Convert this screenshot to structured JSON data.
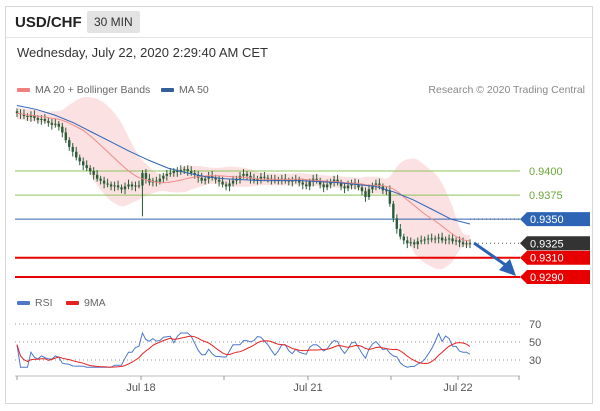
{
  "header": {
    "symbol": "USD/CHF",
    "timeframe": "30 MIN"
  },
  "date_line": "Wednesday, July 22, 2020 2:29:40 AM CET",
  "legend": [
    {
      "label": "MA 20 + Bollinger Bands",
      "color": "#f07f7f"
    },
    {
      "label": "MA 50",
      "color": "#34609a"
    }
  ],
  "credit": "Research © 2020 Trading Central",
  "rsi_legend": [
    {
      "label": "RSI",
      "color": "#4d79c9"
    },
    {
      "label": "9MA",
      "color": "#e32222"
    }
  ],
  "colors": {
    "support": "#e80000",
    "pivot": "#2e64b4",
    "resistance": "#8fc459",
    "last": "#333333",
    "candle": "#2a5c38",
    "bollinger": "#f7c9c9"
  },
  "chart_data": [
    {
      "type": "line",
      "title": "USD/CHF",
      "ylim": [
        0.9275,
        0.947
      ],
      "x_ticks": [
        "Jul 18",
        "Jul 21",
        "Jul 22"
      ],
      "levels": [
        {
          "label": "0.9400",
          "value": 0.94,
          "kind": "resistance"
        },
        {
          "label": "0.9375",
          "value": 0.9375,
          "kind": "resistance"
        },
        {
          "label": "0.9350",
          "value": 0.935,
          "kind": "pivot"
        },
        {
          "label": "0.9325",
          "value": 0.9325,
          "kind": "last"
        },
        {
          "label": "0.9310",
          "value": 0.931,
          "kind": "support"
        },
        {
          "label": "0.9290",
          "value": 0.929,
          "kind": "support"
        }
      ],
      "close": [
        0.946,
        0.9459,
        0.9457,
        0.9456,
        0.9458,
        0.9455,
        0.9453,
        0.9454,
        0.9452,
        0.945,
        0.9448,
        0.9449,
        0.9446,
        0.944,
        0.9432,
        0.9425,
        0.942,
        0.9414,
        0.941,
        0.9406,
        0.9403,
        0.94,
        0.9396,
        0.9392,
        0.939,
        0.9387,
        0.9386,
        0.9384,
        0.9385,
        0.9383,
        0.9381,
        0.9384,
        0.9386,
        0.9384,
        0.9385,
        0.9385,
        0.9398,
        0.9392,
        0.9388,
        0.939,
        0.9389,
        0.9392,
        0.9395,
        0.9397,
        0.9398,
        0.94,
        0.9399,
        0.9401,
        0.9402,
        0.94,
        0.9398,
        0.9396,
        0.9393,
        0.939,
        0.9392,
        0.9395,
        0.9393,
        0.9391,
        0.9389,
        0.9386,
        0.9384,
        0.9387,
        0.939,
        0.9392,
        0.9395,
        0.9397,
        0.9395,
        0.9392,
        0.939,
        0.9392,
        0.9394,
        0.9393,
        0.9392,
        0.9391,
        0.939,
        0.9391,
        0.9392,
        0.939,
        0.9389,
        0.939,
        0.9391,
        0.9388,
        0.9386,
        0.9384,
        0.9389,
        0.9392,
        0.939,
        0.9386,
        0.9383,
        0.9386,
        0.9389,
        0.9391,
        0.9388,
        0.9384,
        0.9382,
        0.9385,
        0.9388,
        0.9386,
        0.9383,
        0.9379,
        0.9373,
        0.9381,
        0.9385,
        0.9387,
        0.9384,
        0.938,
        0.938,
        0.9366,
        0.9351,
        0.934,
        0.9332,
        0.9328,
        0.9325,
        0.9326,
        0.9324,
        0.9327,
        0.9328,
        0.9329,
        0.933,
        0.9329,
        0.933,
        0.9331,
        0.9328,
        0.9329,
        0.933,
        0.9327,
        0.9328,
        0.9326,
        0.9324,
        0.9325,
        0.9325
      ],
      "ma50": [
        0.9468,
        0.9464,
        0.9458,
        0.945,
        0.944,
        0.943,
        0.942,
        0.9411,
        0.9403,
        0.9398,
        0.9394,
        0.9392,
        0.9391,
        0.939,
        0.939,
        0.939,
        0.9389,
        0.9388,
        0.9386,
        0.9384,
        0.9378,
        0.937,
        0.936,
        0.935,
        0.9345
      ],
      "rsi": {
        "ylim": [
          18,
          74
        ],
        "levels": [
          70,
          50,
          30
        ]
      }
    }
  ]
}
